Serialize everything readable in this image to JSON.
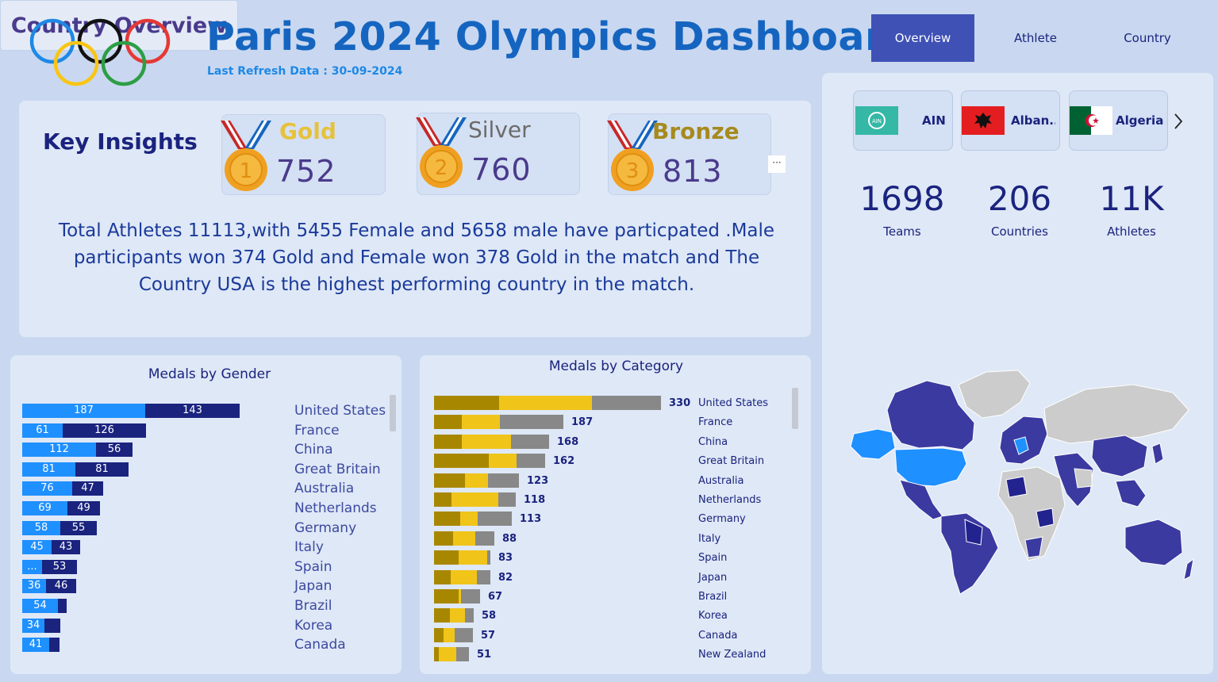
{
  "header": {
    "title": "Paris 2024 Olympics Dashboard",
    "refresh": "Last Refresh Data : 30-09-2024"
  },
  "nav": [
    "Overview",
    "Athlete",
    "Country"
  ],
  "insights": {
    "label": "Key Insights",
    "gold_label": "Gold",
    "gold_count": "752",
    "silver_label": "Silver",
    "silver_count": "760",
    "bronze_label": "Bronze",
    "bronze_count": "813",
    "text": "Total Athletes 11113,with 5455 Female and 5658 male have particpated .Male participants won 374 Gold and Female won 378 Gold in the match and The Country USA is the highest performing country in the match."
  },
  "gender_chart": {
    "title": "Medals by Gender",
    "colors": {
      "female": "#1e90ff",
      "male": "#1a237e"
    },
    "rows": [
      {
        "country": "United States",
        "female": 187,
        "male": 143,
        "female_label": "187",
        "male_label": "143"
      },
      {
        "country": "France",
        "female": 61,
        "male": 126,
        "female_label": "61",
        "male_label": "126"
      },
      {
        "country": "China",
        "female": 112,
        "male": 56,
        "female_label": "112",
        "male_label": "56"
      },
      {
        "country": "Great Britain",
        "female": 81,
        "male": 81,
        "female_label": "81",
        "male_label": "81"
      },
      {
        "country": "Australia",
        "female": 76,
        "male": 47,
        "female_label": "76",
        "male_label": "47"
      },
      {
        "country": "Netherlands",
        "female": 69,
        "male": 49,
        "female_label": "69",
        "male_label": "49"
      },
      {
        "country": "Germany",
        "female": 58,
        "male": 55,
        "female_label": "58",
        "male_label": "55"
      },
      {
        "country": "Italy",
        "female": 45,
        "male": 43,
        "female_label": "45",
        "male_label": "43"
      },
      {
        "country": "Spain",
        "female": 30,
        "male": 53,
        "female_label": "...",
        "male_label": "53"
      },
      {
        "country": "Japan",
        "female": 36,
        "male": 46,
        "female_label": "36",
        "male_label": "46"
      },
      {
        "country": "Brazil",
        "female": 54,
        "male": 13,
        "female_label": "54",
        "male_label": ""
      },
      {
        "country": "Korea",
        "female": 34,
        "male": 24,
        "female_label": "34",
        "male_label": ""
      },
      {
        "country": "Canada",
        "female": 41,
        "male": 16,
        "female_label": "41",
        "male_label": ""
      }
    ]
  },
  "category_chart": {
    "title": "Medals by Category",
    "colors": {
      "gold": "#a88700",
      "silver": "#f0c419",
      "bronze": "#888888"
    },
    "rows": [
      {
        "country": "United States",
        "total": 330,
        "segments": [
          95,
          135,
          100
        ]
      },
      {
        "country": "France",
        "total": 187,
        "segments": [
          40,
          55,
          92
        ]
      },
      {
        "country": "China",
        "total": 168,
        "segments": [
          40,
          72,
          56
        ]
      },
      {
        "country": "Great Britain",
        "total": 162,
        "segments": [
          80,
          40,
          42
        ]
      },
      {
        "country": "Australia",
        "total": 123,
        "segments": [
          45,
          33,
          45
        ]
      },
      {
        "country": "Netherlands",
        "total": 118,
        "segments": [
          25,
          68,
          25
        ]
      },
      {
        "country": "Germany",
        "total": 113,
        "segments": [
          38,
          25,
          50
        ]
      },
      {
        "country": "Italy",
        "total": 88,
        "segments": [
          28,
          32,
          28
        ]
      },
      {
        "country": "Spain",
        "total": 83,
        "segments": [
          36,
          42,
          5
        ]
      },
      {
        "country": "Japan",
        "total": 82,
        "segments": [
          24,
          38,
          20
        ]
      },
      {
        "country": "Brazil",
        "total": 67,
        "segments": [
          36,
          3,
          28
        ]
      },
      {
        "country": "Korea",
        "total": 58,
        "segments": [
          23,
          22,
          13
        ]
      },
      {
        "country": "Canada",
        "total": 57,
        "segments": [
          14,
          16,
          27
        ]
      },
      {
        "country": "New Zealand",
        "total": 51,
        "segments": [
          7,
          26,
          18
        ]
      }
    ]
  },
  "countries": [
    {
      "name": "AIN",
      "flag": "ain-flag"
    },
    {
      "name": "Alban...",
      "flag": "albania-flag"
    },
    {
      "name": "Algeria",
      "flag": "algeria-flag"
    }
  ],
  "kpis": [
    {
      "value": "1698",
      "label": "Teams"
    },
    {
      "value": "206",
      "label": "Countries"
    },
    {
      "value": "11K",
      "label": "Athletes"
    }
  ],
  "country_overview": "Country Overview"
}
